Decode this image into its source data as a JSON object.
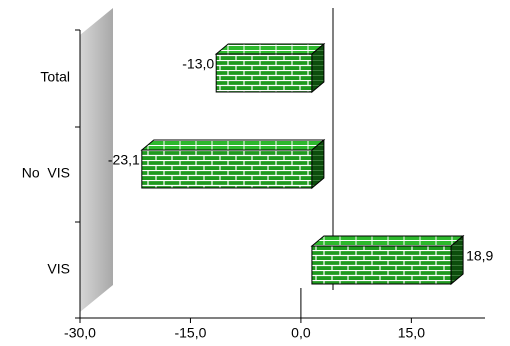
{
  "chart_data": {
    "type": "bar",
    "orientation": "horizontal",
    "categories": [
      "Total",
      "No  VIS",
      "VIS"
    ],
    "values": [
      -13.0,
      -23.1,
      18.9
    ],
    "value_labels": [
      "-13,0",
      "-23,1",
      "18,9"
    ],
    "color": "#1f9a1f",
    "xlim": [
      -30,
      25
    ],
    "xticks": [
      {
        "value": -30,
        "label": "-30,0"
      },
      {
        "value": -15,
        "label": "-15,0"
      },
      {
        "value": 0,
        "label": "0,0"
      },
      {
        "value": 15,
        "label": "15,0"
      }
    ]
  }
}
